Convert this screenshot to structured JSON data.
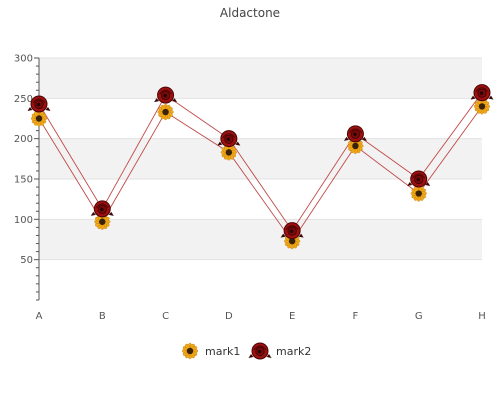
{
  "chart_data": {
    "type": "line",
    "title": "Aldactone",
    "categories": [
      "A",
      "B",
      "C",
      "D",
      "E",
      "F",
      "G",
      "H"
    ],
    "series": [
      {
        "name": "mark1",
        "values": [
          225,
          97,
          233,
          183,
          73,
          191,
          132,
          240
        ]
      },
      {
        "name": "mark2",
        "values": [
          243,
          113,
          254,
          200,
          86,
          206,
          150,
          257
        ]
      }
    ],
    "ylim": [
      0,
      300
    ],
    "yticks": [
      50,
      100,
      150,
      200,
      250,
      300
    ],
    "grid": true,
    "legend_position": "bottom-center",
    "xlabel": "",
    "ylabel": ""
  },
  "colors": {
    "line": "#c04848",
    "band": "#f2f2f2",
    "gridline": "#e2e2e2",
    "axis": "#555555",
    "mark1_petal": "#f0a818",
    "mark1_center": "#3a2208",
    "mark2_petal": "#9e1010",
    "mark2_center": "#2a0505"
  },
  "icons": {
    "mark1": "sunflower-icon",
    "mark2": "rose-icon"
  }
}
